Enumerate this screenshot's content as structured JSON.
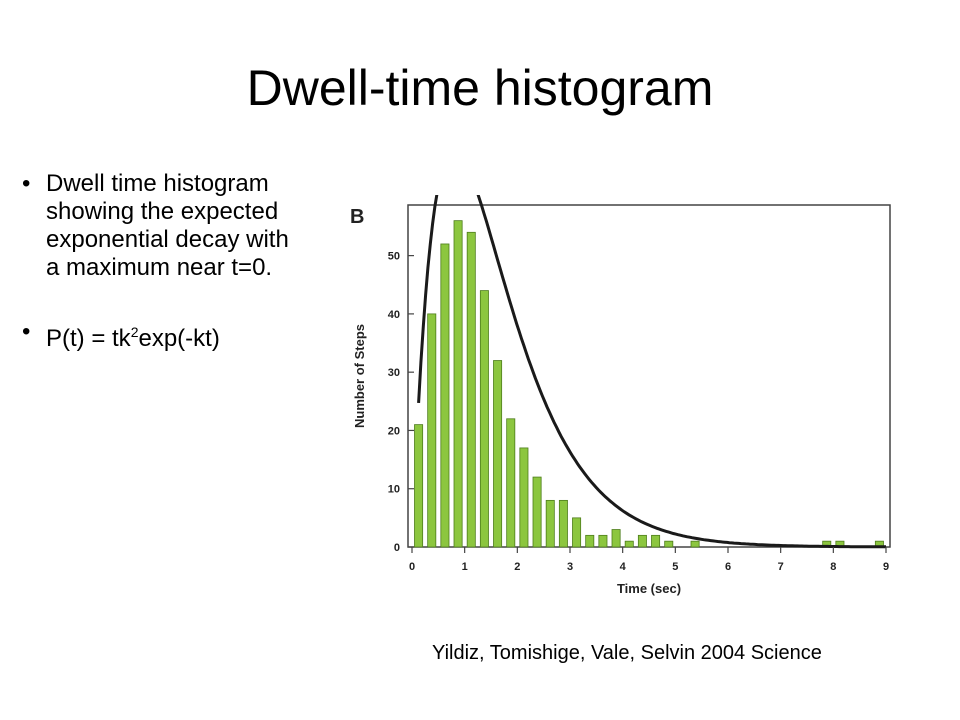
{
  "slide": {
    "title": "Dwell-time histogram",
    "bullets": [
      {
        "text": "Dwell time histogram showing the expected exponential decay with a maximum near t=0."
      },
      {
        "pre": "P(t) = tk",
        "sup": "2",
        "post": "exp(-kt)"
      }
    ],
    "citation": "Yildiz, Tomishige, Vale, Selvin 2004 Science"
  },
  "chart_data": {
    "type": "bar",
    "panel_label": "B",
    "xlabel": "Time (sec)",
    "ylabel": "Number of Steps",
    "xlim": [
      0,
      9
    ],
    "ylim": [
      0,
      58
    ],
    "xticks": [
      0,
      1,
      2,
      3,
      4,
      5,
      6,
      7,
      8,
      9
    ],
    "yticks": [
      0,
      10,
      20,
      30,
      40,
      50
    ],
    "bin_width": 0.25,
    "bar_color": "#8cc63f",
    "bar_edge_color": "#4e7d1c",
    "fit_color": "#1a1a1a",
    "grid": false,
    "bins": [
      {
        "x": 0.125,
        "y": 21
      },
      {
        "x": 0.375,
        "y": 40
      },
      {
        "x": 0.625,
        "y": 52
      },
      {
        "x": 0.875,
        "y": 56
      },
      {
        "x": 1.125,
        "y": 54
      },
      {
        "x": 1.375,
        "y": 44
      },
      {
        "x": 1.625,
        "y": 32
      },
      {
        "x": 1.875,
        "y": 22
      },
      {
        "x": 2.125,
        "y": 17
      },
      {
        "x": 2.375,
        "y": 12
      },
      {
        "x": 2.625,
        "y": 8
      },
      {
        "x": 2.875,
        "y": 8
      },
      {
        "x": 3.125,
        "y": 5
      },
      {
        "x": 3.375,
        "y": 2
      },
      {
        "x": 3.625,
        "y": 2
      },
      {
        "x": 3.875,
        "y": 3
      },
      {
        "x": 4.125,
        "y": 1
      },
      {
        "x": 4.375,
        "y": 2
      },
      {
        "x": 4.625,
        "y": 2
      },
      {
        "x": 4.875,
        "y": 1
      },
      {
        "x": 5.375,
        "y": 1
      },
      {
        "x": 7.875,
        "y": 1
      },
      {
        "x": 8.125,
        "y": 1
      },
      {
        "x": 8.875,
        "y": 1
      }
    ],
    "fit": {
      "model": "t k^2 exp(-k t)",
      "amplitude": 148,
      "k": 1.25
    }
  }
}
